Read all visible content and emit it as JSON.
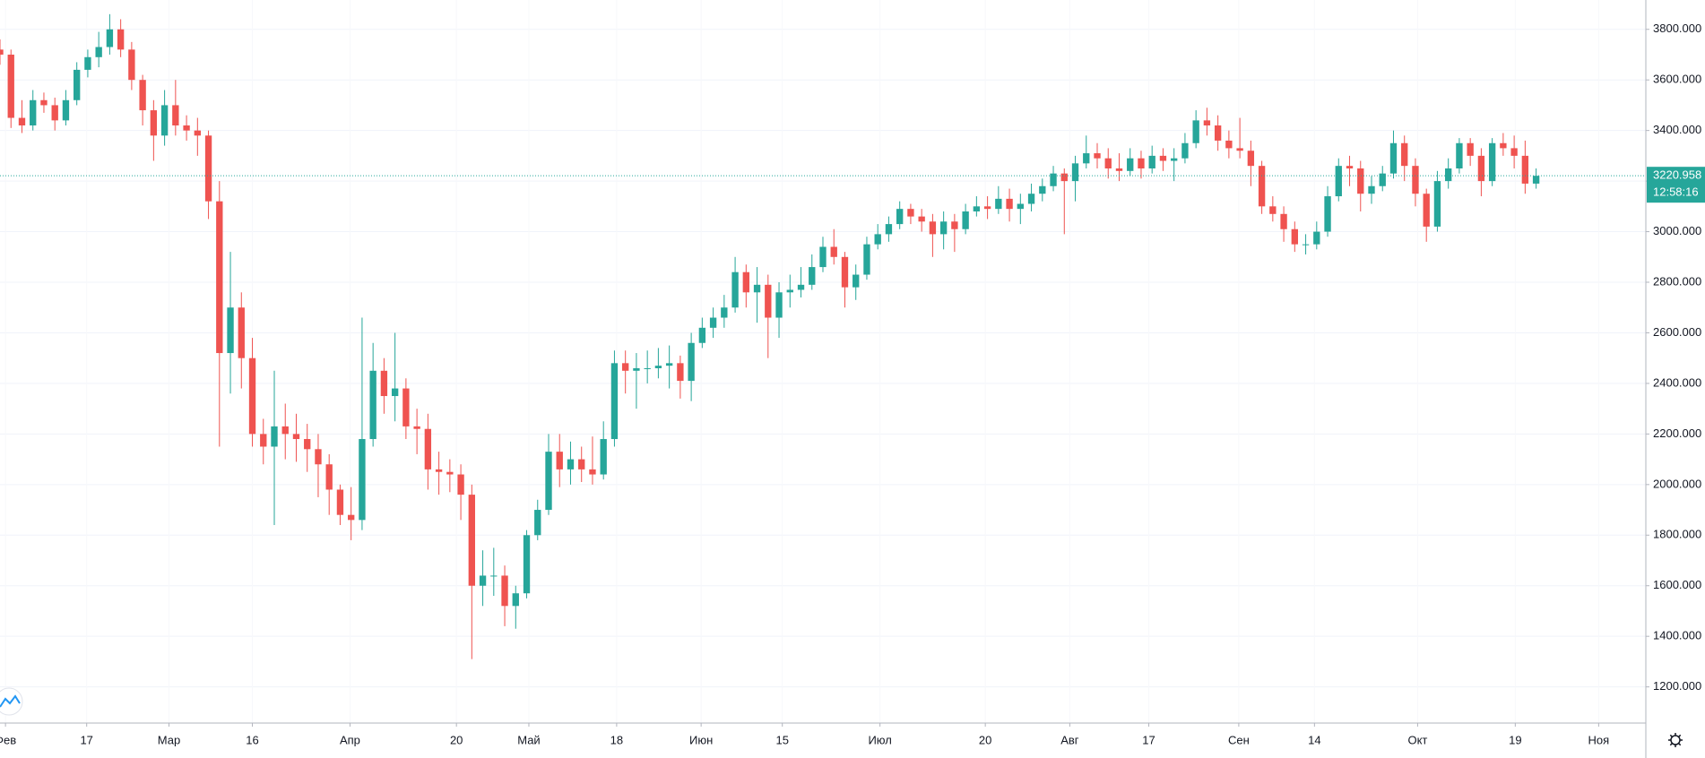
{
  "chart_data": {
    "type": "candlestick",
    "up_color": "#26a69a",
    "down_color": "#ef5350",
    "grid": true,
    "open": [
      3720,
      3700,
      3450,
      3420,
      3520,
      3500,
      3440,
      3520,
      3640,
      3690,
      3730,
      3800,
      3720,
      3600,
      3480,
      3380,
      3500,
      3420,
      3400,
      3380,
      3120,
      2520,
      2700,
      2500,
      2200,
      2150,
      2230,
      2200,
      2180,
      2140,
      2080,
      1980,
      1880,
      1860,
      2180,
      2450,
      2350,
      2380,
      2230,
      2220,
      2060,
      2050,
      2040,
      1960,
      1600,
      1640,
      1640,
      1520,
      1570,
      1800,
      1900,
      2130,
      2060,
      2100,
      2060,
      2040,
      2180,
      2480,
      2450,
      2460,
      2460,
      2470,
      2480,
      2410,
      2560,
      2620,
      2660,
      2700,
      2840,
      2760,
      2790,
      2660,
      2760,
      2770,
      2790,
      2860,
      2940,
      2900,
      2780,
      2830,
      2950,
      2990,
      3030,
      3090,
      3060,
      3040,
      2990,
      3040,
      3010,
      3080,
      3100,
      3090,
      3130,
      3090,
      3110,
      3150,
      3180,
      3230,
      3200,
      3270,
      3310,
      3290,
      3250,
      3240,
      3290,
      3250,
      3300,
      3280,
      3290,
      3350,
      3440,
      3420,
      3360,
      3330,
      3320,
      3260,
      3100,
      3070,
      3010,
      2950,
      2950,
      3000,
      3140,
      3260,
      3250,
      3150,
      3180,
      3230,
      3350,
      3260,
      3150,
      3020,
      3200,
      3250,
      3350,
      3300,
      3200,
      3350,
      3330,
      3300,
      3190
    ],
    "high": [
      3760,
      3720,
      3520,
      3560,
      3550,
      3530,
      3560,
      3670,
      3720,
      3790,
      3860,
      3840,
      3750,
      3620,
      3520,
      3560,
      3600,
      3460,
      3450,
      3400,
      3200,
      2920,
      2760,
      2580,
      2260,
      2450,
      2320,
      2280,
      2240,
      2200,
      2120,
      2000,
      1990,
      2660,
      2560,
      2500,
      2600,
      2420,
      2300,
      2280,
      2130,
      2100,
      2080,
      2000,
      1740,
      1750,
      1680,
      1600,
      1820,
      1940,
      2200,
      2200,
      2170,
      2150,
      2190,
      2250,
      2530,
      2530,
      2520,
      2530,
      2540,
      2550,
      2510,
      2600,
      2660,
      2700,
      2750,
      2900,
      2870,
      2860,
      2830,
      2800,
      2830,
      2860,
      2910,
      2980,
      3010,
      2920,
      2870,
      2980,
      3030,
      3060,
      3120,
      3110,
      3090,
      3070,
      3080,
      3070,
      3110,
      3140,
      3140,
      3180,
      3170,
      3150,
      3190,
      3210,
      3260,
      3250,
      3300,
      3380,
      3350,
      3330,
      3310,
      3330,
      3320,
      3340,
      3330,
      3330,
      3390,
      3480,
      3490,
      3460,
      3400,
      3450,
      3360,
      3280,
      3140,
      3100,
      3040,
      2990,
      3040,
      3180,
      3290,
      3300,
      3280,
      3220,
      3260,
      3400,
      3380,
      3290,
      3170,
      3240,
      3290,
      3370,
      3370,
      3330,
      3370,
      3390,
      3380,
      3360,
      3250
    ],
    "low": [
      3660,
      3410,
      3390,
      3400,
      3470,
      3400,
      3420,
      3500,
      3610,
      3650,
      3700,
      3690,
      3560,
      3420,
      3280,
      3340,
      3380,
      3360,
      3300,
      3050,
      2150,
      2360,
      2380,
      2150,
      2080,
      1840,
      2100,
      2090,
      2050,
      1950,
      1880,
      1840,
      1780,
      1820,
      2150,
      2280,
      2250,
      2180,
      2120,
      1980,
      1960,
      1970,
      1860,
      1310,
      1520,
      1560,
      1440,
      1430,
      1550,
      1780,
      1880,
      1990,
      2000,
      2010,
      2000,
      2020,
      2150,
      2360,
      2300,
      2400,
      2420,
      2380,
      2340,
      2330,
      2540,
      2580,
      2620,
      2680,
      2700,
      2640,
      2500,
      2580,
      2700,
      2740,
      2770,
      2840,
      2870,
      2700,
      2730,
      2810,
      2930,
      2960,
      3010,
      3030,
      3000,
      2900,
      2930,
      2920,
      2990,
      3060,
      3050,
      3070,
      3040,
      3030,
      3080,
      3120,
      3160,
      2990,
      3120,
      3250,
      3250,
      3210,
      3200,
      3220,
      3210,
      3230,
      3240,
      3200,
      3270,
      3330,
      3380,
      3320,
      3290,
      3290,
      3180,
      3070,
      3040,
      2960,
      2920,
      2910,
      2930,
      2980,
      3120,
      3180,
      3080,
      3110,
      3160,
      3210,
      3200,
      3100,
      2960,
      3000,
      3170,
      3230,
      3260,
      3140,
      3180,
      3300,
      3250,
      3150,
      3170
    ],
    "close": [
      3700,
      3450,
      3420,
      3520,
      3500,
      3440,
      3520,
      3640,
      3690,
      3730,
      3800,
      3720,
      3600,
      3480,
      3380,
      3500,
      3420,
      3400,
      3380,
      3120,
      2520,
      2700,
      2500,
      2200,
      2150,
      2230,
      2200,
      2180,
      2140,
      2080,
      1980,
      1880,
      1860,
      2180,
      2450,
      2350,
      2380,
      2230,
      2220,
      2060,
      2050,
      2040,
      1960,
      1600,
      1640,
      1640,
      1520,
      1570,
      1800,
      1900,
      2130,
      2060,
      2100,
      2060,
      2040,
      2180,
      2480,
      2450,
      2460,
      2460,
      2470,
      2480,
      2410,
      2560,
      2620,
      2660,
      2700,
      2840,
      2760,
      2790,
      2660,
      2760,
      2770,
      2790,
      2860,
      2940,
      2900,
      2780,
      2830,
      2950,
      2990,
      3030,
      3090,
      3060,
      3040,
      2990,
      3040,
      3010,
      3080,
      3100,
      3090,
      3130,
      3090,
      3110,
      3150,
      3180,
      3230,
      3200,
      3270,
      3310,
      3290,
      3250,
      3240,
      3290,
      3250,
      3300,
      3280,
      3290,
      3350,
      3440,
      3420,
      3360,
      3330,
      3320,
      3260,
      3100,
      3070,
      3010,
      2950,
      2950,
      3000,
      3140,
      3260,
      3250,
      3150,
      3180,
      3230,
      3350,
      3260,
      3150,
      3020,
      3200,
      3250,
      3350,
      3300,
      3200,
      3350,
      3330,
      3300,
      3190,
      3220.958
    ],
    "last_price": 3220.958,
    "countdown": "12:58:16",
    "xlim": [
      0,
      150
    ],
    "xticks": [
      {
        "value": 0.5,
        "label": "Фев"
      },
      {
        "value": 7.9,
        "label": "17"
      },
      {
        "value": 15.4,
        "label": "Мар"
      },
      {
        "value": 23,
        "label": "16"
      },
      {
        "value": 31.9,
        "label": "Апр"
      },
      {
        "value": 41.6,
        "label": "20"
      },
      {
        "value": 48.2,
        "label": "Май"
      },
      {
        "value": 56.2,
        "label": "18"
      },
      {
        "value": 63.9,
        "label": "Июн"
      },
      {
        "value": 71.3,
        "label": "15"
      },
      {
        "value": 80.2,
        "label": "Июл"
      },
      {
        "value": 89.8,
        "label": "20"
      },
      {
        "value": 97.5,
        "label": "Авг"
      },
      {
        "value": 104.7,
        "label": "17"
      },
      {
        "value": 112.9,
        "label": "Сен"
      },
      {
        "value": 119.8,
        "label": "14"
      },
      {
        "value": 129.2,
        "label": "Окт"
      },
      {
        "value": 138.1,
        "label": "19"
      },
      {
        "value": 145.7,
        "label": "Ноя"
      }
    ],
    "ylim": [
      1057,
      3916
    ],
    "yticks": [
      {
        "value": 1200,
        "label": "1200.000"
      },
      {
        "value": 1400,
        "label": "1400.000"
      },
      {
        "value": 1600,
        "label": "1600.000"
      },
      {
        "value": 1800,
        "label": "1800.000"
      },
      {
        "value": 2000,
        "label": "2000.000"
      },
      {
        "value": 2200,
        "label": "2200.000"
      },
      {
        "value": 2400,
        "label": "2400.000"
      },
      {
        "value": 2600,
        "label": "2600.000"
      },
      {
        "value": 2800,
        "label": "2800.000"
      },
      {
        "value": 3000,
        "label": "3000.000"
      },
      {
        "value": 3200,
        "label": "3200.000"
      },
      {
        "value": 3400,
        "label": "3400.000"
      },
      {
        "value": 3600,
        "label": "3600.000"
      },
      {
        "value": 3800,
        "label": "3800.000"
      }
    ]
  }
}
